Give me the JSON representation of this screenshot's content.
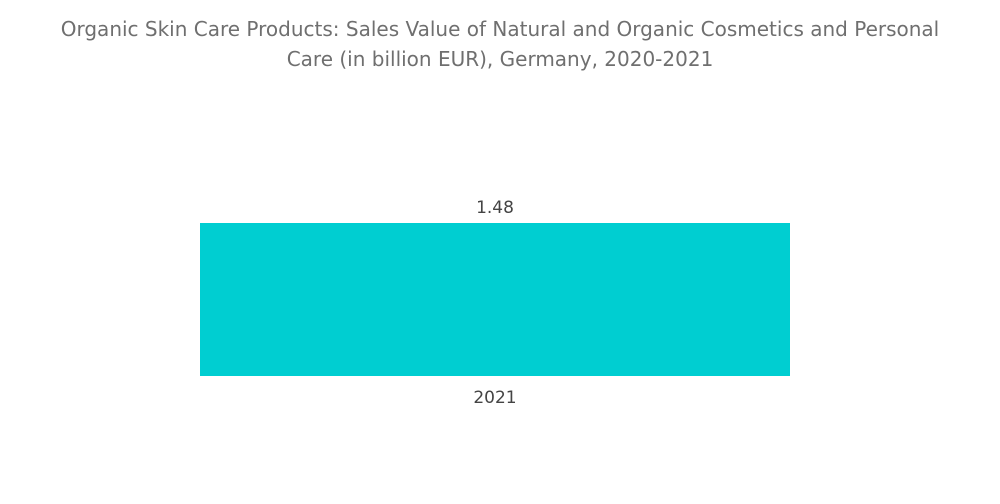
{
  "title_line1": "Organic Skin Care Products: Sales Value of Natural and Organic Cosmetics and Personal",
  "title_line2": "Care (in billion EUR), Germany, 2020-2021",
  "chart_data": {
    "type": "bar",
    "title": "Organic Skin Care Products: Sales Value of Natural and Organic Cosmetics and Personal Care (in billion EUR), Germany, 2020-2021",
    "categories": [
      "2021"
    ],
    "values": [
      1.48
    ],
    "data_labels": [
      "1.48"
    ],
    "xlabel": "",
    "ylabel": "",
    "ylim": [
      0,
      1.48
    ],
    "grid": false,
    "legend": "none",
    "colors": {
      "bar": "#00CED1"
    }
  }
}
